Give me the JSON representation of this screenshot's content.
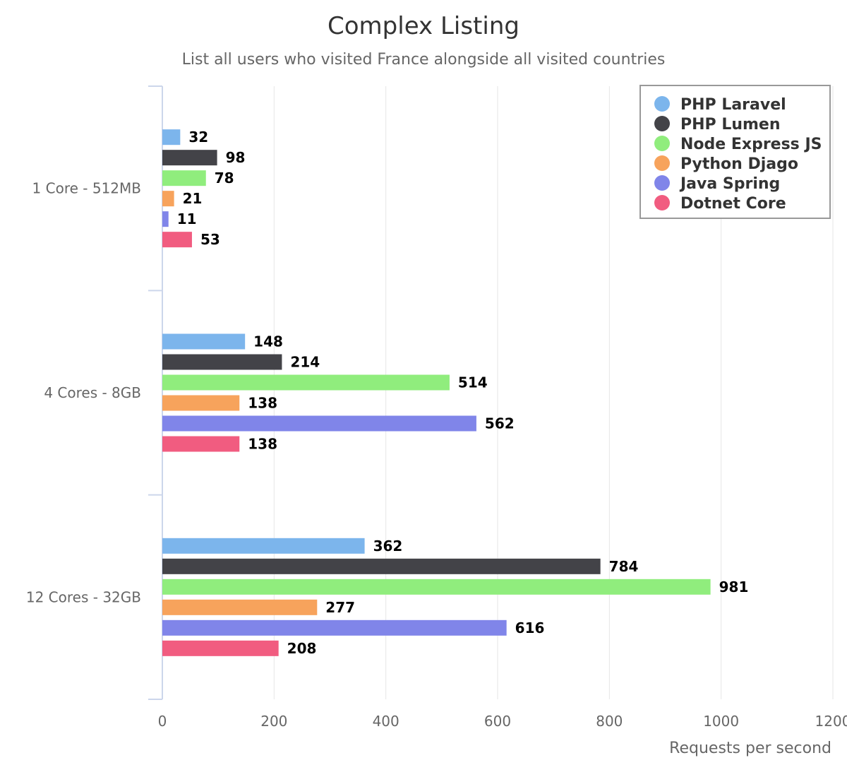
{
  "chart_data": {
    "type": "bar",
    "orientation": "horizontal",
    "title": "Complex Listing",
    "subtitle": "List all users who visited France alongside all visited countries",
    "xlabel": "Requests per second",
    "ylabel": "",
    "xlim": [
      0,
      1200
    ],
    "ticks": [
      "0",
      "200",
      "400",
      "600",
      "800",
      "1000",
      "1200"
    ],
    "grid": true,
    "legend_position": "top-right",
    "categories": [
      "1 Core - 512MB",
      "4 Cores - 8GB",
      "12 Cores - 32GB"
    ],
    "series": [
      {
        "name": "PHP Laravel",
        "color": "#7cb5ec",
        "values": [
          32,
          148,
          362
        ]
      },
      {
        "name": "PHP Lumen",
        "color": "#434348",
        "values": [
          98,
          214,
          784
        ]
      },
      {
        "name": "Node Express JS",
        "color": "#90ed7d",
        "values": [
          78,
          514,
          981
        ]
      },
      {
        "name": "Python Djago",
        "color": "#f7a35c",
        "values": [
          21,
          138,
          277
        ]
      },
      {
        "name": "Java Spring",
        "color": "#8085e9",
        "values": [
          11,
          562,
          616
        ]
      },
      {
        "name": "Dotnet Core",
        "color": "#f15c80",
        "values": [
          53,
          138,
          208
        ]
      }
    ]
  }
}
